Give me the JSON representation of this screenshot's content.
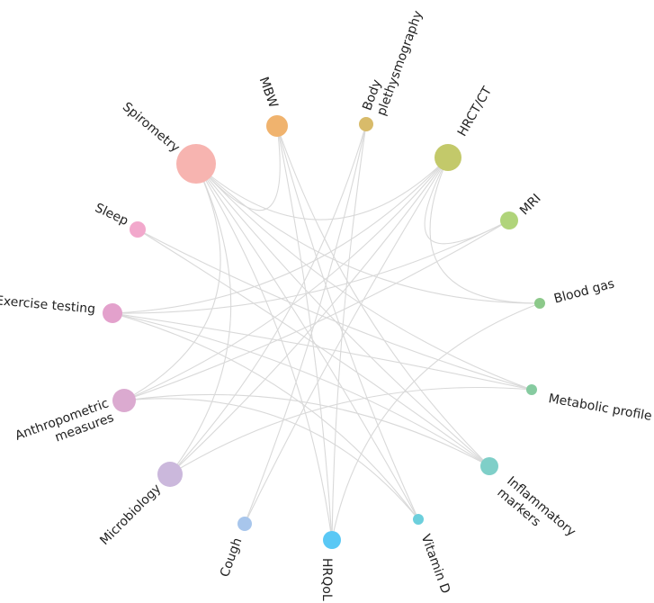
{
  "nodes": [
    {
      "label_lines": [
        "Spirometry"
      ]
    },
    {
      "label_lines": [
        "MBW"
      ]
    },
    {
      "label_lines": [
        "Body",
        "plethysmography"
      ]
    },
    {
      "label_lines": [
        "HRCT/CT"
      ]
    },
    {
      "label_lines": [
        "MRI"
      ]
    },
    {
      "label_lines": [
        "Blood gas"
      ]
    },
    {
      "label_lines": [
        "Metabolic profile"
      ]
    },
    {
      "label_lines": [
        "Inflammatory",
        "markers"
      ]
    },
    {
      "label_lines": [
        "Vitamin D"
      ]
    },
    {
      "label_lines": [
        "HRQoL"
      ]
    },
    {
      "label_lines": [
        "Cough"
      ]
    },
    {
      "label_lines": [
        "Microbiology"
      ]
    },
    {
      "label_lines": [
        "Anthropometric",
        "measures"
      ]
    },
    {
      "label_lines": [
        "Exercise testing"
      ]
    },
    {
      "label_lines": [
        "Sleep"
      ]
    }
  ]
}
